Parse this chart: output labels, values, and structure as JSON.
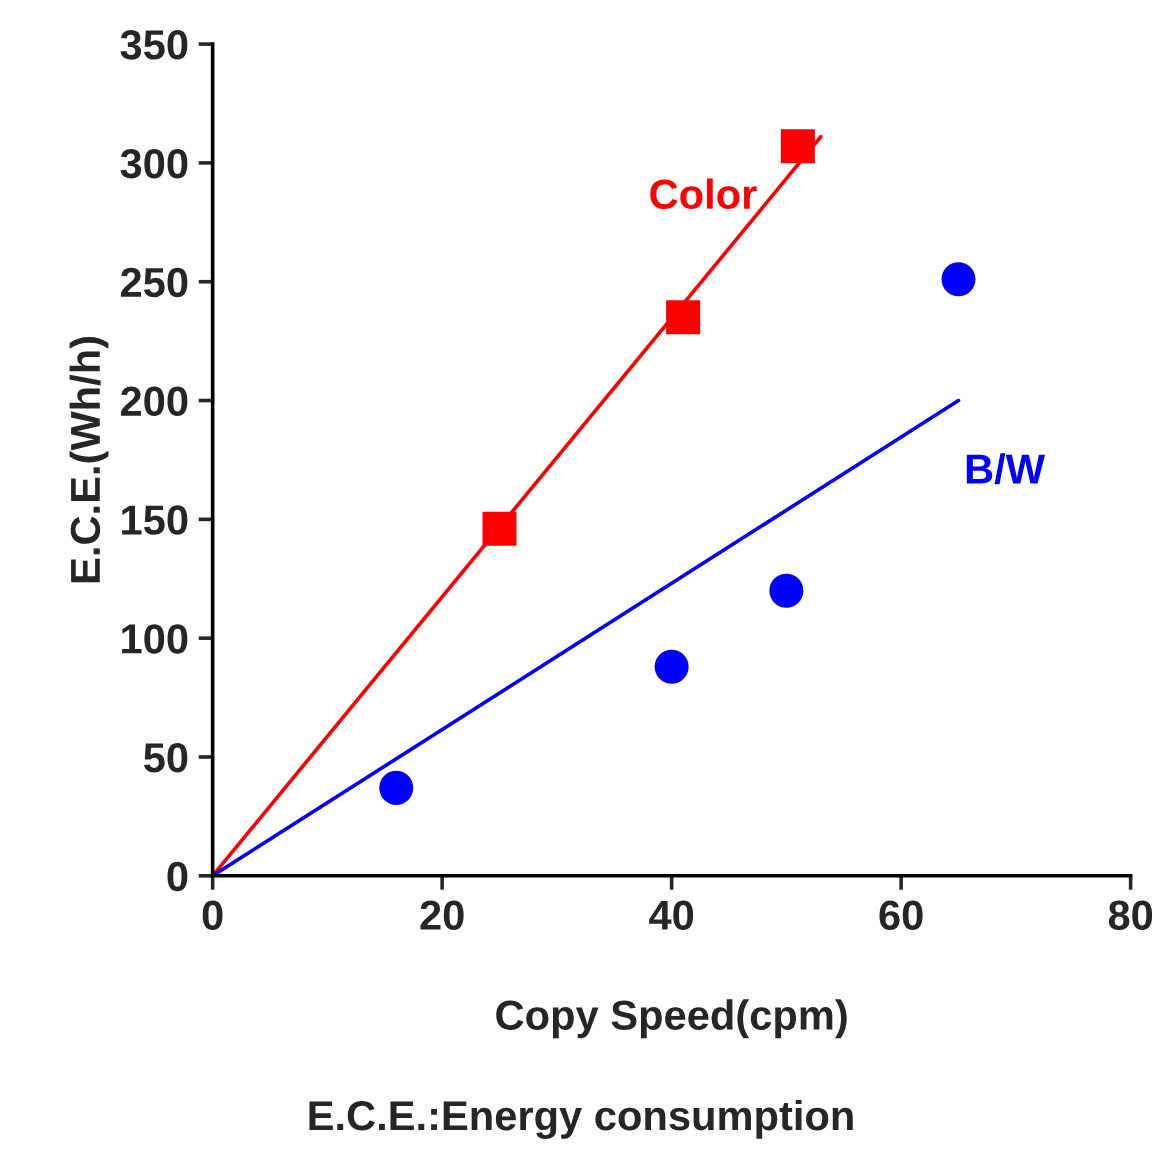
{
  "chart_data": {
    "type": "scatter",
    "xlabel": "Copy Speed(cpm)",
    "ylabel": "E.C.E.(Wh/h)",
    "annotations": [
      "E.C.E.:Energy consumption"
    ],
    "xlim": [
      0,
      80
    ],
    "xticks": [
      0,
      20,
      40,
      60,
      80
    ],
    "ylim": [
      0,
      350
    ],
    "yticks": [
      0,
      50,
      100,
      150,
      200,
      250,
      300,
      350
    ],
    "grid": false,
    "legend": false,
    "series": [
      {
        "name": "Color",
        "type": "line",
        "color": "#ff0000",
        "x": [
          0,
          53
        ],
        "values": [
          0,
          311
        ],
        "marker": "none"
      },
      {
        "color": "#ff0000",
        "x": [
          25,
          41,
          51
        ],
        "values": [
          146,
          235,
          307
        ],
        "marker": "square"
      },
      {
        "name": "B/W",
        "type": "line",
        "color": "#0000ff",
        "x": [
          0,
          65
        ],
        "values": [
          0,
          200
        ],
        "marker": "none"
      },
      {
        "color": "#0000ff",
        "x": [
          16,
          40,
          50,
          65
        ],
        "values": [
          37,
          88,
          120,
          251
        ],
        "marker": "circle"
      }
    ]
  }
}
